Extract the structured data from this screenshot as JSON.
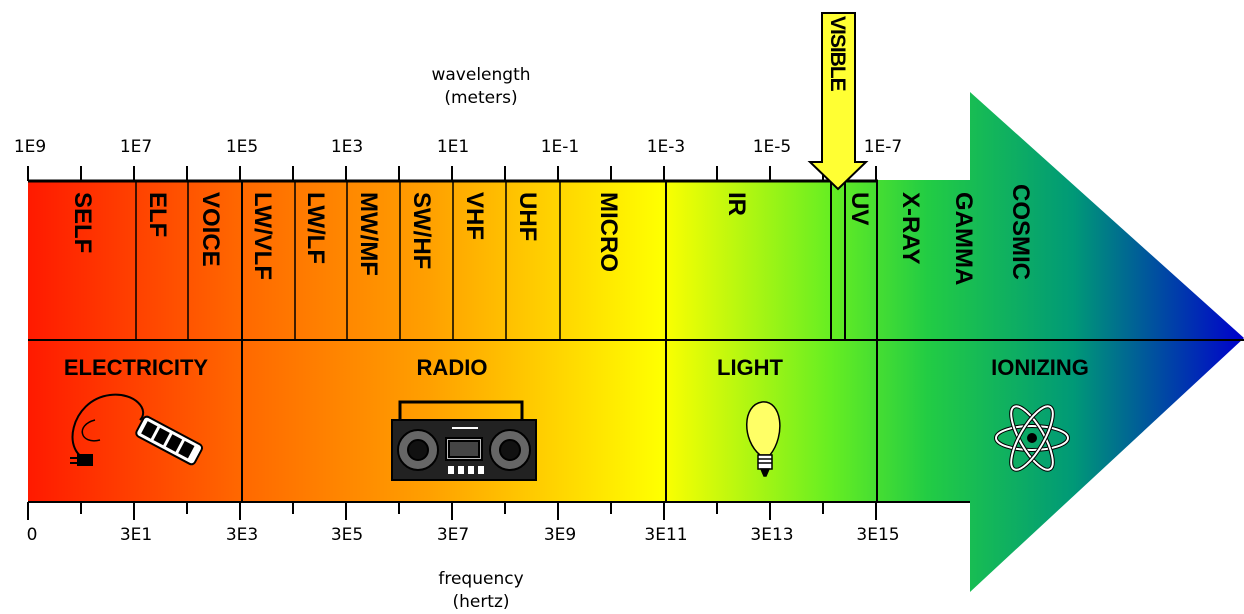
{
  "wavelength_axis": {
    "label_line1": "wavelength",
    "label_line2": "(meters)",
    "ticks": [
      "1E9",
      "1E7",
      "1E5",
      "1E3",
      "1E1",
      "1E-1",
      "1E-3",
      "1E-5",
      "1E-7"
    ]
  },
  "frequency_axis": {
    "label_line1": "frequency",
    "label_line2": "(hertz)",
    "ticks": [
      "0",
      "3E1",
      "3E3",
      "3E5",
      "3E7",
      "3E9",
      "3E11",
      "3E13",
      "3E15"
    ]
  },
  "bands": [
    "SELF",
    "ELF",
    "VOICE",
    "LW/VLF",
    "LW/LF",
    "MW/MF",
    "SW/HF",
    "VHF",
    "UHF",
    "MICRO",
    "IR",
    "UV",
    "X-RAY",
    "GAMMA",
    "COSMIC"
  ],
  "categories": [
    {
      "label": "ELECTRICITY",
      "icon": "power-strip-icon"
    },
    {
      "label": "RADIO",
      "icon": "boombox-icon"
    },
    {
      "label": "LIGHT",
      "icon": "light-bulb-icon"
    },
    {
      "label": "IONIZING",
      "icon": "atom-icon"
    }
  ],
  "visible_callout": "VISIBLE",
  "colors": {
    "red": "#ff1a00",
    "orange": "#ff9900",
    "yellow": "#ffff00",
    "green": "#33cc33",
    "blue": "#0000cc",
    "callout": "#ffff33"
  }
}
